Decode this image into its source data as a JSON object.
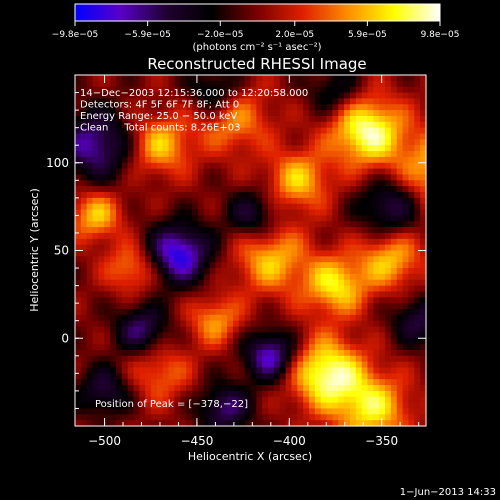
{
  "chart_data": {
    "type": "heatmap",
    "title": "Reconstructed RHESSI Image",
    "xlabel": "Heliocentric X (arcsec)",
    "ylabel": "Heliocentric Y (arcsec)",
    "xlim": [
      -516,
      -326
    ],
    "ylim": [
      -50,
      150
    ],
    "x_ticks": [
      {
        "value": -500,
        "label": "−500"
      },
      {
        "value": -450,
        "label": "−450"
      },
      {
        "value": -400,
        "label": "−400"
      },
      {
        "value": -350,
        "label": "−350"
      }
    ],
    "y_ticks": [
      {
        "value": 0,
        "label": "0"
      },
      {
        "value": 50,
        "label": "50"
      },
      {
        "value": 100,
        "label": "100"
      }
    ],
    "colorbar": {
      "min": -9.8e-05,
      "max": 9.8e-05,
      "units": "(photons cm⁻² s⁻¹ asec⁻²)",
      "ticks": [
        {
          "value": -9.8e-05,
          "label": "−9.8e−05"
        },
        {
          "value": -5.9e-05,
          "label": "−5.9e−05"
        },
        {
          "value": -2e-05,
          "label": "−2.0e−05"
        },
        {
          "value": 2e-05,
          "label": "2.0e−05"
        },
        {
          "value": 5.9e-05,
          "label": "5.9e−05"
        },
        {
          "value": 9.8e-05,
          "label": "9.8e−05"
        }
      ],
      "colors": [
        "#0000ff",
        "#5a00c8",
        "#200030",
        "#000000",
        "#7a0000",
        "#e02000",
        "#ff9000",
        "#ffff00",
        "#ffffff"
      ]
    },
    "annotations": [
      "14−Dec−2003 12:15:36.000 to 12:20:58.000",
      "Detectors: 4F 5F 6F 7F 8F; Att 0",
      "Energy Range: 25.0 − 50.0 keV",
      "Clean     Total counts: 8.26E+03"
    ],
    "peak_label": "Position of Peak = [−378,−22]",
    "peak": [
      -378,
      -22
    ],
    "sources": [
      {
        "x": -358,
        "y": 118,
        "w": 9e-05,
        "r": 14
      },
      {
        "x": -320,
        "y": 95,
        "w": 6e-05,
        "r": 16
      },
      {
        "x": -470,
        "y": 110,
        "w": 6e-05,
        "r": 12
      },
      {
        "x": -430,
        "y": 125,
        "w": 5e-05,
        "r": 14
      },
      {
        "x": -505,
        "y": 70,
        "w": 6e-05,
        "r": 10
      },
      {
        "x": -485,
        "y": 40,
        "w": 5e-05,
        "r": 10
      },
      {
        "x": -410,
        "y": 45,
        "w": 6e-05,
        "r": 14
      },
      {
        "x": -375,
        "y": 30,
        "w": 7e-05,
        "r": 12
      },
      {
        "x": -345,
        "y": 45,
        "w": 6e-05,
        "r": 12
      },
      {
        "x": -440,
        "y": 10,
        "w": 5e-05,
        "r": 10
      },
      {
        "x": -380,
        "y": -20,
        "w": 9e-05,
        "r": 14
      },
      {
        "x": -355,
        "y": -40,
        "w": 7e-05,
        "r": 14
      },
      {
        "x": -470,
        "y": -20,
        "w": 4e-05,
        "r": 12
      },
      {
        "x": -395,
        "y": 90,
        "w": 6e-05,
        "r": 12
      },
      {
        "x": -460,
        "y": 48,
        "w": -9e-05,
        "r": 12
      },
      {
        "x": -505,
        "y": 110,
        "w": -7e-05,
        "r": 14
      },
      {
        "x": -480,
        "y": 5,
        "w": -6e-05,
        "r": 10
      },
      {
        "x": -420,
        "y": 70,
        "w": -5e-05,
        "r": 10
      },
      {
        "x": -410,
        "y": -10,
        "w": -8e-05,
        "r": 10
      },
      {
        "x": -345,
        "y": 75,
        "w": -6e-05,
        "r": 12
      },
      {
        "x": -330,
        "y": 10,
        "w": -5e-05,
        "r": 10
      },
      {
        "x": -440,
        "y": 140,
        "w": -5e-05,
        "r": 10
      },
      {
        "x": -435,
        "y": -40,
        "w": -6e-05,
        "r": 10
      },
      {
        "x": -500,
        "y": -30,
        "w": -5e-05,
        "r": 10
      },
      {
        "x": -375,
        "y": 140,
        "w": -4e-05,
        "r": 10
      }
    ]
  },
  "footer": {
    "date": "1−Jun−2013 14:33"
  }
}
